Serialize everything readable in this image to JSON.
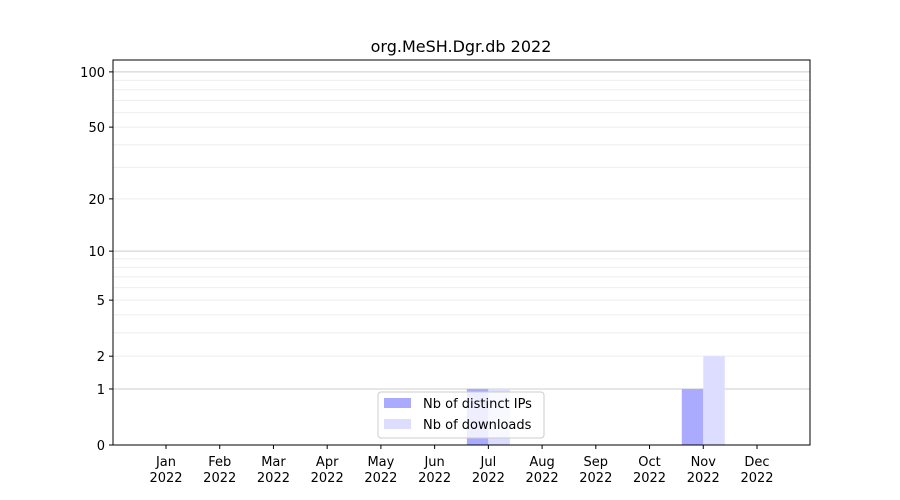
{
  "chart_data": {
    "type": "bar",
    "title": "org.MeSH.Dgr.db 2022",
    "xlabel": "",
    "ylabel": "",
    "categories": [
      "Jan\n2022",
      "Feb\n2022",
      "Mar\n2022",
      "Apr\n2022",
      "May\n2022",
      "Jun\n2022",
      "Jul\n2022",
      "Aug\n2022",
      "Sep\n2022",
      "Oct\n2022",
      "Nov\n2022",
      "Dec\n2022"
    ],
    "series": [
      {
        "name": "Nb of distinct IPs",
        "color": "#aaaaff",
        "values": [
          0,
          0,
          0,
          0,
          0,
          0,
          1,
          0,
          0,
          0,
          1,
          0
        ]
      },
      {
        "name": "Nb of downloads",
        "color": "#ddddff",
        "values": [
          0,
          0,
          0,
          0,
          0,
          0,
          1,
          0,
          0,
          0,
          2,
          0
        ]
      }
    ],
    "yscale": "log(1+y)",
    "yticks": [
      0,
      1,
      2,
      5,
      10,
      20,
      50,
      100
    ],
    "ylim": [
      0,
      116
    ],
    "grid": true,
    "legend": "bottom-center"
  }
}
